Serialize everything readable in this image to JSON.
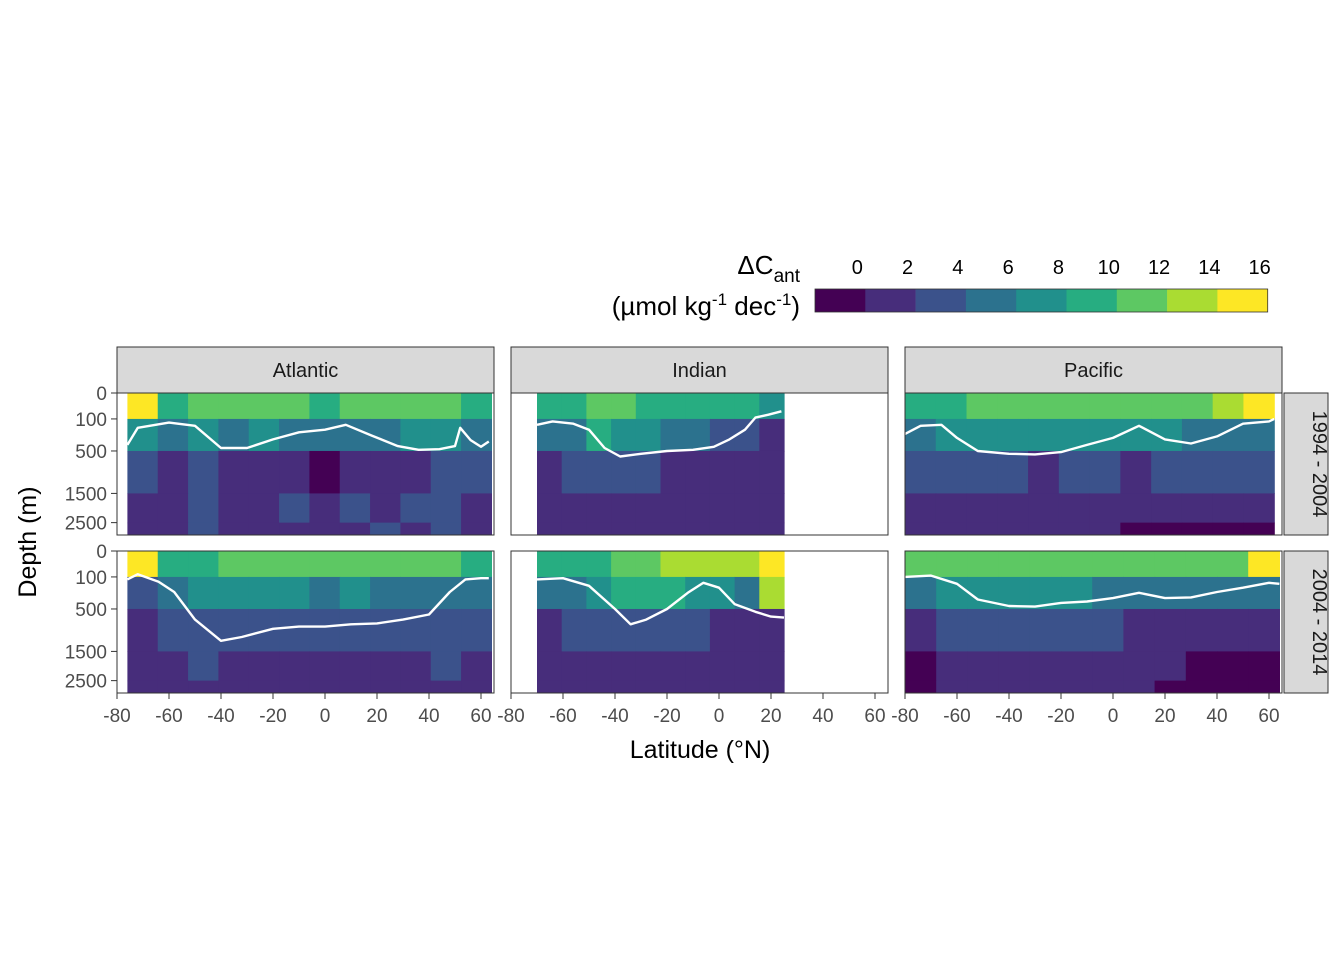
{
  "chart_data": {
    "type": "heatmap",
    "subtype": "faceted filled contour sections",
    "xlabel": "Latitude (°N)",
    "ylabel": "Depth (m)",
    "legend": {
      "title_main": "ΔC",
      "title_sub": "ant",
      "title_line2_parts": [
        "(µmol kg",
        "-1",
        " dec",
        "-1",
        ")"
      ],
      "position": "top-right",
      "breaks": [
        0,
        2,
        4,
        6,
        8,
        10,
        12,
        14,
        16
      ],
      "tick_labels": [
        "0",
        "2",
        "4",
        "6",
        "8",
        "10",
        "12",
        "14",
        "16"
      ],
      "colors": [
        "#440154",
        "#472D7B",
        "#3B528B",
        "#2C728E",
        "#21908C",
        "#27AD81",
        "#5DC863",
        "#AADC32",
        "#FDE725"
      ]
    },
    "x_ticks": [
      -80,
      -60,
      -40,
      -20,
      0,
      20,
      40,
      60
    ],
    "x_tick_labels": [
      "-80",
      "-60",
      "-40",
      "-20",
      "0",
      "20",
      "40",
      "60"
    ],
    "xlim": [
      -80,
      65
    ],
    "y_ticks": [
      0,
      100,
      500,
      1500,
      2500
    ],
    "y_tick_labels": [
      "0",
      "100",
      "500",
      "1500",
      "2500"
    ],
    "ylim": [
      0,
      3000
    ],
    "y_scale": "sqrt (reversed)",
    "facet_columns": [
      "Atlantic",
      "Indian",
      "Pacific"
    ],
    "facet_rows": [
      "1994 - 2004",
      "2004 - 2014"
    ],
    "contour_line": "white",
    "grid": false,
    "panels": [
      {
        "basin": "Atlantic",
        "period": "1994 - 2004",
        "lat_range": [
          -76,
          64
        ],
        "white_contour": [
          [
            -76,
            400
          ],
          [
            -72,
            180
          ],
          [
            -60,
            130
          ],
          [
            -50,
            160
          ],
          [
            -40,
            450
          ],
          [
            -30,
            450
          ],
          [
            -20,
            320
          ],
          [
            -10,
            230
          ],
          [
            0,
            200
          ],
          [
            8,
            150
          ],
          [
            18,
            270
          ],
          [
            28,
            420
          ],
          [
            36,
            480
          ],
          [
            44,
            470
          ],
          [
            50,
            420
          ],
          [
            52,
            180
          ],
          [
            56,
            330
          ],
          [
            60,
            430
          ],
          [
            63,
            350
          ]
        ],
        "values": [
          [
            16,
            10,
            11,
            12,
            12,
            11,
            10,
            11,
            11,
            11,
            12,
            10
          ],
          [
            7,
            6,
            7,
            6,
            7,
            6,
            5,
            6,
            6,
            7,
            7,
            6
          ],
          [
            3,
            2,
            3,
            2,
            1,
            1,
            0,
            2,
            1,
            2,
            3,
            3
          ],
          [
            2,
            2,
            3,
            2,
            2,
            3,
            2,
            3,
            2,
            3,
            3,
            2
          ],
          [
            2,
            2,
            3,
            2,
            2,
            2,
            2,
            2,
            3,
            2,
            3,
            2
          ]
        ]
      },
      {
        "basin": "Indian",
        "period": "1994 - 2004",
        "lat_range": [
          -70,
          25
        ],
        "white_contour": [
          [
            -70,
            150
          ],
          [
            -64,
            120
          ],
          [
            -56,
            140
          ],
          [
            -50,
            200
          ],
          [
            -44,
            450
          ],
          [
            -38,
            600
          ],
          [
            -30,
            550
          ],
          [
            -20,
            500
          ],
          [
            -10,
            480
          ],
          [
            -2,
            430
          ],
          [
            4,
            320
          ],
          [
            10,
            200
          ],
          [
            14,
            90
          ],
          [
            19,
            70
          ],
          [
            24,
            50
          ]
        ],
        "values": [
          [
            9,
            9,
            11,
            11,
            10,
            10,
            9,
            9,
            9,
            8
          ],
          [
            5,
            6,
            9,
            8,
            7,
            6,
            5,
            4,
            3,
            2
          ],
          [
            2,
            3,
            3,
            4,
            3,
            2,
            2,
            2,
            2,
            1
          ],
          [
            2,
            2,
            2,
            2,
            2,
            2,
            2,
            2,
            2,
            2
          ],
          [
            2,
            2,
            2,
            2,
            2,
            2,
            2,
            2,
            2,
            2
          ]
        ]
      },
      {
        "basin": "Pacific",
        "period": "1994 - 2004",
        "lat_range": [
          -80,
          62
        ],
        "white_contour": [
          [
            -80,
            250
          ],
          [
            -74,
            160
          ],
          [
            -66,
            150
          ],
          [
            -60,
            300
          ],
          [
            -52,
            500
          ],
          [
            -40,
            550
          ],
          [
            -30,
            560
          ],
          [
            -20,
            520
          ],
          [
            -10,
            400
          ],
          [
            0,
            300
          ],
          [
            10,
            160
          ],
          [
            20,
            320
          ],
          [
            30,
            380
          ],
          [
            40,
            280
          ],
          [
            50,
            140
          ],
          [
            60,
            120
          ],
          [
            62,
            100
          ]
        ],
        "values": [
          [
            10,
            10,
            11,
            12,
            12,
            12,
            12,
            11,
            11,
            12,
            13,
            16
          ],
          [
            6,
            7,
            7,
            8,
            8,
            7,
            7,
            7,
            7,
            6,
            6,
            6
          ],
          [
            3,
            3,
            3,
            3,
            2,
            3,
            3,
            2,
            3,
            3,
            3,
            3
          ],
          [
            2,
            2,
            2,
            2,
            2,
            2,
            2,
            1,
            1,
            1,
            1,
            1
          ],
          [
            2,
            2,
            2,
            2,
            1,
            1,
            1,
            0,
            0,
            0,
            0,
            0
          ]
        ]
      },
      {
        "basin": "Atlantic",
        "period": "2004 - 2014",
        "lat_range": [
          -76,
          64
        ],
        "white_contour": [
          [
            -76,
            120
          ],
          [
            -72,
            80
          ],
          [
            -64,
            140
          ],
          [
            -58,
            250
          ],
          [
            -50,
            700
          ],
          [
            -40,
            1200
          ],
          [
            -32,
            1100
          ],
          [
            -20,
            900
          ],
          [
            -10,
            850
          ],
          [
            0,
            850
          ],
          [
            10,
            800
          ],
          [
            20,
            780
          ],
          [
            30,
            700
          ],
          [
            40,
            600
          ],
          [
            48,
            250
          ],
          [
            54,
            120
          ],
          [
            60,
            110
          ],
          [
            63,
            110
          ]
        ],
        "values": [
          [
            16,
            10,
            10,
            12,
            12,
            11,
            11,
            11,
            12,
            12,
            11,
            10
          ],
          [
            3,
            5,
            7,
            7,
            7,
            7,
            6,
            7,
            6,
            6,
            6,
            6
          ],
          [
            2,
            3,
            4,
            4,
            3,
            3,
            3,
            3,
            3,
            3,
            4,
            3
          ],
          [
            2,
            2,
            3,
            2,
            2,
            2,
            2,
            2,
            2,
            2,
            3,
            2
          ],
          [
            2,
            2,
            2,
            2,
            2,
            2,
            2,
            1,
            1,
            2,
            2,
            2
          ]
        ]
      },
      {
        "basin": "Indian",
        "period": "2004 - 2014",
        "lat_range": [
          -70,
          25
        ],
        "white_contour": [
          [
            -70,
            120
          ],
          [
            -60,
            110
          ],
          [
            -50,
            180
          ],
          [
            -40,
            500
          ],
          [
            -34,
            800
          ],
          [
            -28,
            700
          ],
          [
            -20,
            500
          ],
          [
            -12,
            260
          ],
          [
            -6,
            150
          ],
          [
            0,
            200
          ],
          [
            6,
            420
          ],
          [
            14,
            550
          ],
          [
            20,
            640
          ],
          [
            25,
            660
          ]
        ],
        "values": [
          [
            10,
            10,
            10,
            11,
            12,
            14,
            14,
            14,
            13,
            15
          ],
          [
            5,
            6,
            8,
            9,
            9,
            9,
            8,
            7,
            6,
            14
          ],
          [
            2,
            3,
            3,
            3,
            3,
            3,
            3,
            2,
            2,
            2
          ],
          [
            2,
            2,
            2,
            2,
            2,
            2,
            2,
            1,
            2,
            2
          ],
          [
            2,
            2,
            2,
            2,
            2,
            2,
            2,
            2,
            2,
            2
          ]
        ]
      },
      {
        "basin": "Pacific",
        "period": "2004 - 2014",
        "lat_range": [
          -80,
          64
        ],
        "white_contour": [
          [
            -80,
            100
          ],
          [
            -70,
            90
          ],
          [
            -60,
            160
          ],
          [
            -52,
            350
          ],
          [
            -40,
            450
          ],
          [
            -30,
            460
          ],
          [
            -20,
            400
          ],
          [
            -10,
            380
          ],
          [
            0,
            330
          ],
          [
            10,
            260
          ],
          [
            20,
            330
          ],
          [
            30,
            320
          ],
          [
            40,
            250
          ],
          [
            50,
            200
          ],
          [
            60,
            150
          ],
          [
            64,
            160
          ]
        ],
        "values": [
          [
            11,
            11,
            11,
            12,
            12,
            12,
            12,
            11,
            11,
            12,
            12,
            16
          ],
          [
            5,
            7,
            7,
            7,
            8,
            7,
            6,
            6,
            6,
            6,
            6,
            6
          ],
          [
            2,
            3,
            3,
            3,
            3,
            3,
            3,
            2,
            2,
            2,
            2,
            2
          ],
          [
            0,
            1,
            2,
            2,
            2,
            2,
            1,
            1,
            1,
            0,
            0,
            0
          ],
          [
            0,
            1,
            1,
            1,
            1,
            1,
            1,
            1,
            0,
            0,
            0,
            0
          ]
        ]
      }
    ]
  }
}
